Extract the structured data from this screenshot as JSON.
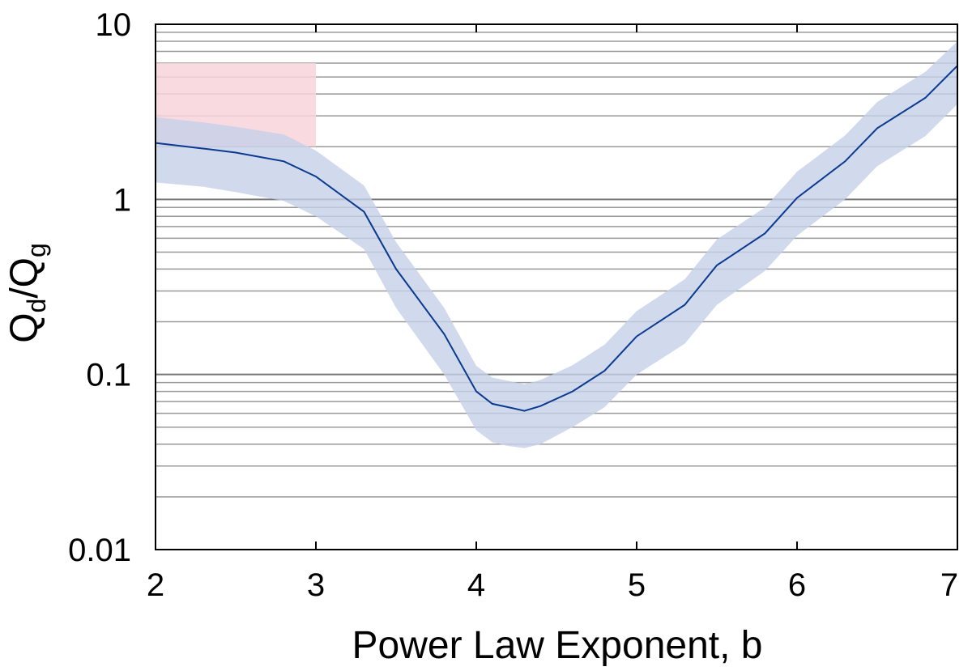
{
  "chart_data": {
    "type": "line",
    "title": "",
    "xlabel": "Power Law Exponent, b",
    "ylabel": {
      "main": "Q",
      "sub1": "d",
      "sep": "/Q",
      "sub2": "g"
    },
    "xlim": [
      2,
      7
    ],
    "ylim": [
      0.01,
      10
    ],
    "yscale": "log",
    "grid": "horizontal",
    "x_ticks": [
      "2",
      "3",
      "4",
      "5",
      "6",
      "7"
    ],
    "y_ticks": [
      "0.01",
      "0.1",
      "1",
      "10"
    ],
    "shaded_region": {
      "x": [
        2,
        3
      ],
      "y": [
        2,
        6
      ],
      "color": "#f8d3da"
    },
    "series": [
      {
        "x": [
          2.0,
          2.3,
          2.5,
          2.8,
          3.0,
          3.3,
          3.5,
          3.8,
          4.0,
          4.1,
          4.2,
          4.3,
          4.4,
          4.6,
          4.8,
          5.0,
          5.3,
          5.5,
          5.8,
          6.0,
          6.3,
          6.5,
          6.8,
          7.0
        ],
        "y": [
          2.1,
          1.95,
          1.85,
          1.65,
          1.35,
          0.85,
          0.4,
          0.17,
          0.08,
          0.068,
          0.065,
          0.062,
          0.066,
          0.08,
          0.105,
          0.165,
          0.25,
          0.42,
          0.64,
          1.02,
          1.65,
          2.55,
          3.8,
          5.8
        ],
        "lower": [
          1.25,
          1.18,
          1.1,
          0.98,
          0.8,
          0.52,
          0.24,
          0.1,
          0.048,
          0.041,
          0.039,
          0.038,
          0.04,
          0.05,
          0.065,
          0.1,
          0.15,
          0.25,
          0.39,
          0.62,
          1.0,
          1.55,
          2.3,
          3.5
        ],
        "upper": [
          2.95,
          2.75,
          2.6,
          2.35,
          1.9,
          1.2,
          0.57,
          0.24,
          0.112,
          0.096,
          0.092,
          0.088,
          0.093,
          0.113,
          0.148,
          0.23,
          0.35,
          0.59,
          0.9,
          1.44,
          2.32,
          3.6,
          5.35,
          8.0
        ],
        "line_color": "#0a3a8f",
        "band_color": "#c5d0e8"
      }
    ]
  }
}
